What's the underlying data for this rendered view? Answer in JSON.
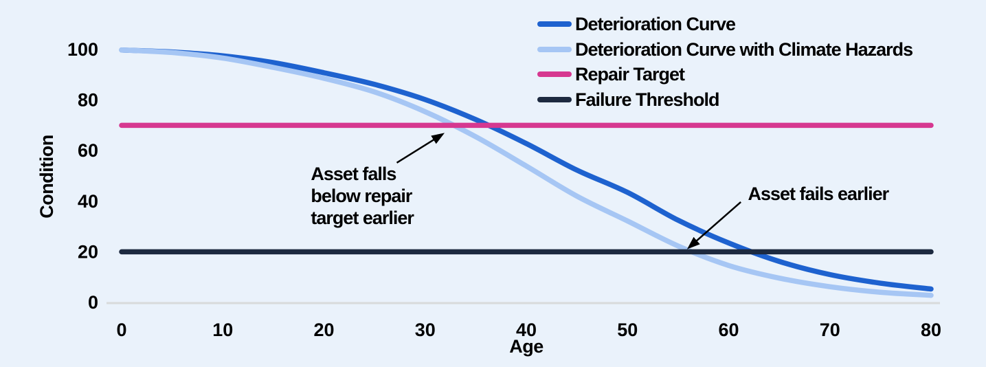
{
  "colors": {
    "background": "#eaf2fb",
    "deterioration_curve": "#1e62cf",
    "climate_curve": "#a6c6f4",
    "repair_target": "#d63890",
    "failure_threshold": "#1d2a40",
    "axis_baseline": "#d8dadb",
    "text": "#000000",
    "annotation_arrow": "#000000"
  },
  "chart_data": {
    "type": "line",
    "title": "",
    "xlabel": "Age",
    "ylabel": "Condition",
    "xlim": [
      0,
      80
    ],
    "ylim": [
      0,
      100
    ],
    "xticks": [
      0,
      10,
      20,
      30,
      40,
      50,
      60,
      70,
      80
    ],
    "yticks": [
      0,
      20,
      40,
      60,
      80,
      100
    ],
    "grid": false,
    "legend_position": "top-right",
    "series": [
      {
        "id": "deterioration-curve",
        "name": "Deterioration Curve",
        "kind": "curve",
        "color": "#1e62cf",
        "x": [
          0,
          5,
          10,
          15,
          20,
          25,
          30,
          35,
          40,
          45,
          50,
          55,
          60,
          65,
          70,
          75,
          80
        ],
        "y": [
          99.8,
          99.0,
          97.5,
          94.8,
          90.8,
          86.2,
          80.2,
          72.3,
          62.8,
          52.3,
          43.5,
          32.5,
          23.5,
          16.2,
          11.0,
          7.6,
          5.3
        ]
      },
      {
        "id": "climate-hazards-curve",
        "name": "Deterioration Curve with Climate Hazards",
        "kind": "curve",
        "color": "#a6c6f4",
        "x": [
          0,
          5,
          10,
          15,
          20,
          25,
          30,
          35,
          40,
          45,
          50,
          55,
          60,
          65,
          70,
          75,
          80
        ],
        "y": [
          99.8,
          98.8,
          96.6,
          92.9,
          88.6,
          83.2,
          75.4,
          65.5,
          53.9,
          42.0,
          32.2,
          22.3,
          14.6,
          9.6,
          6.2,
          4.0,
          2.8
        ]
      },
      {
        "id": "repair-target-line",
        "name": "Repair Target",
        "kind": "hline",
        "color": "#d63890",
        "y": 70
      },
      {
        "id": "failure-threshold-line",
        "name": "Failure Threshold",
        "kind": "hline",
        "color": "#1d2a40",
        "y": 20
      }
    ],
    "annotations": [
      {
        "id": "below-repair-target-note",
        "lines": [
          "Asset falls",
          "below repair",
          "target earlier"
        ],
        "x": 18.7,
        "y": 50.8,
        "arrow": {
          "from": [
            27.2,
            55.2
          ],
          "to": [
            31.0,
            64.7
          ]
        }
      },
      {
        "id": "fails-earlier-note",
        "lines": [
          "Asset fails earlier"
        ],
        "x": 61.9,
        "y": 42.9,
        "arrow": {
          "from": [
            61.2,
            39.7
          ],
          "to": [
            56.7,
            23.9
          ]
        }
      }
    ],
    "crossings_depicted": {
      "climate_curve_crosses_repair_target_age": 32.8,
      "deterioration_curve_crosses_repair_target_age": 36.3,
      "climate_curve_crosses_failure_threshold_age": 56,
      "deterioration_curve_crosses_failure_threshold_age": 62
    }
  }
}
